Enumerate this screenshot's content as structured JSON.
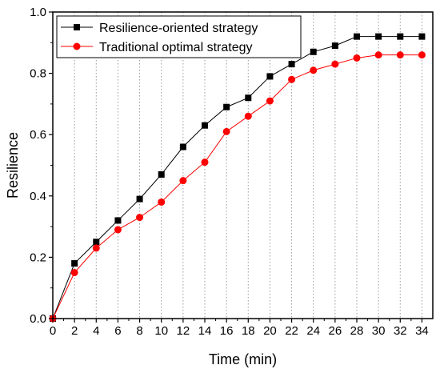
{
  "chart_data": {
    "type": "line",
    "xlabel": "Time (min)",
    "ylabel": "Resilience",
    "xlim": [
      0,
      35
    ],
    "ylim": [
      0.0,
      1.0
    ],
    "x_ticks": [
      0,
      2,
      4,
      6,
      8,
      10,
      12,
      14,
      16,
      18,
      20,
      22,
      24,
      26,
      28,
      30,
      32,
      34
    ],
    "y_ticks": [
      0.0,
      0.2,
      0.4,
      0.6,
      0.8,
      1.0
    ],
    "grid": "vertical-dotted",
    "legend_position": "top-left",
    "x": [
      0,
      2,
      4,
      6,
      8,
      10,
      12,
      14,
      16,
      18,
      20,
      22,
      24,
      26,
      28,
      30,
      32,
      34
    ],
    "series": [
      {
        "name": "Resilience-oriented strategy",
        "color": "#000000",
        "marker": "square",
        "values": [
          0.0,
          0.18,
          0.25,
          0.32,
          0.39,
          0.47,
          0.56,
          0.63,
          0.69,
          0.72,
          0.79,
          0.83,
          0.87,
          0.89,
          0.92,
          0.92,
          0.92,
          0.92
        ]
      },
      {
        "name": "Traditional optimal strategy",
        "color": "#ff0000",
        "marker": "circle",
        "values": [
          0.0,
          0.15,
          0.23,
          0.29,
          0.33,
          0.38,
          0.45,
          0.51,
          0.61,
          0.66,
          0.71,
          0.78,
          0.81,
          0.83,
          0.85,
          0.86,
          0.86,
          0.86
        ]
      }
    ]
  }
}
